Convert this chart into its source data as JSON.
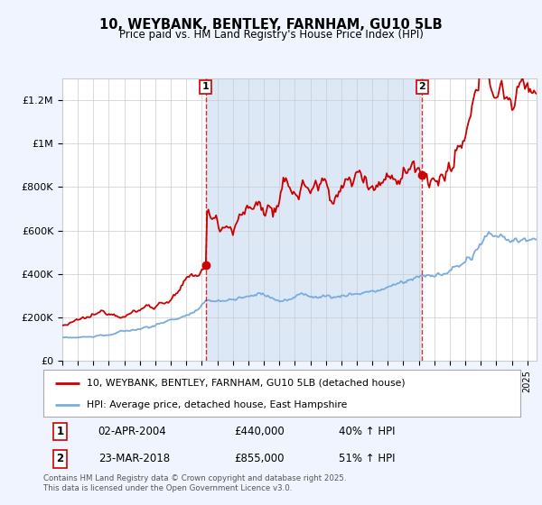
{
  "title": "10, WEYBANK, BENTLEY, FARNHAM, GU10 5LB",
  "subtitle": "Price paid vs. HM Land Registry's House Price Index (HPI)",
  "legend_line1": "10, WEYBANK, BENTLEY, FARNHAM, GU10 5LB (detached house)",
  "legend_line2": "HPI: Average price, detached house, East Hampshire",
  "footnote": "Contains HM Land Registry data © Crown copyright and database right 2025.\nThis data is licensed under the Open Government Licence v3.0.",
  "marker1_date": "02-APR-2004",
  "marker1_price": "£440,000",
  "marker1_hpi": "40% ↑ HPI",
  "marker1_year": 2004.25,
  "marker2_date": "23-MAR-2018",
  "marker2_price": "£855,000",
  "marker2_hpi": "51% ↑ HPI",
  "marker2_year": 2018.22,
  "red_color": "#cc0000",
  "blue_color": "#7aacdb",
  "shade_color": "#dce8f5",
  "dashed_color": "#cc0000",
  "background_color": "#f0f4ff",
  "plot_bg": "#ffffff",
  "grid_color": "#cccccc",
  "ylim": [
    0,
    1300000
  ],
  "xlim_start": 1995,
  "xlim_end": 2025.6
}
